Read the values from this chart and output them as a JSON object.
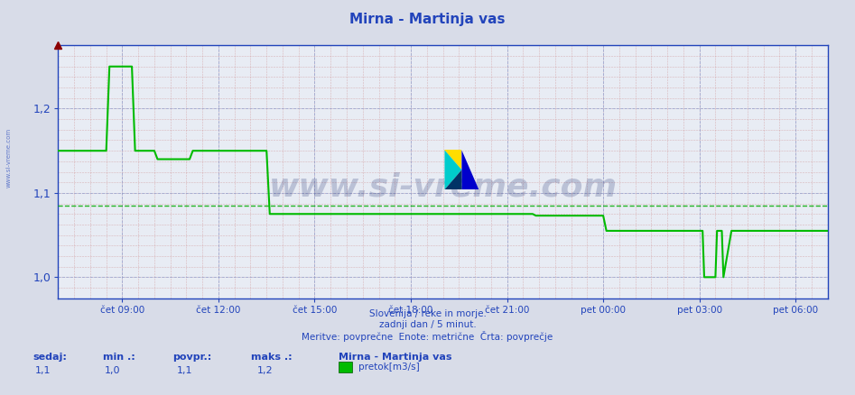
{
  "title": "Mirna - Martinja vas",
  "bg_color": "#d8dce8",
  "plot_bg_color": "#e8ecf4",
  "line_color": "#00bb00",
  "avg_line_color": "#00aa00",
  "grid_major_color": "#8899cc",
  "grid_minor_color": "#cc8888",
  "title_color": "#2244bb",
  "axis_color": "#2244bb",
  "text_color": "#2244bb",
  "spine_color": "#2244bb",
  "ylim_min": 0.975,
  "ylim_max": 1.275,
  "avg_value": 1.085,
  "ytick_labels": [
    "1,0",
    "1,1",
    "1,2"
  ],
  "ytick_values": [
    1.0,
    1.1,
    1.2
  ],
  "x_tick_labels": [
    "čet 09:00",
    "čet 12:00",
    "čet 15:00",
    "čet 18:00",
    "čet 21:00",
    "pet 00:00",
    "pet 03:00",
    "pet 06:00"
  ],
  "x_tick_positions": [
    2,
    5,
    8,
    11,
    14,
    17,
    20,
    23
  ],
  "time_series_x": [
    0,
    1.5,
    1.6,
    2.3,
    2.4,
    3.0,
    3.1,
    4.1,
    4.2,
    6.5,
    6.6,
    10.5,
    10.6,
    14.8,
    14.9,
    15.0,
    15.1,
    17.0,
    17.1,
    20.1,
    20.15,
    20.5,
    20.55,
    20.7,
    20.75,
    21.0,
    24.0
  ],
  "time_series_y": [
    1.15,
    1.15,
    1.25,
    1.25,
    1.15,
    1.15,
    1.14,
    1.14,
    1.15,
    1.15,
    1.075,
    1.075,
    1.075,
    1.075,
    1.073,
    1.073,
    1.073,
    1.073,
    1.055,
    1.055,
    1.0,
    1.0,
    1.055,
    1.055,
    1.0,
    1.055,
    1.055
  ],
  "footer_line1": "Slovenija / reke in morje.",
  "footer_line2": "zadnji dan / 5 minut.",
  "footer_line3": "Meritve: povprečne  Enote: metrične  Črta: povprečje",
  "stat_sedaj": "1,1",
  "stat_min": "1,0",
  "stat_povpr": "1,1",
  "stat_maks": "1,2",
  "station_label": "Mirna - Martinja vas",
  "legend_label": "pretok[m3/s]",
  "watermark_text": "www.si-vreme.com",
  "side_watermark": "www.si-vreme.com"
}
